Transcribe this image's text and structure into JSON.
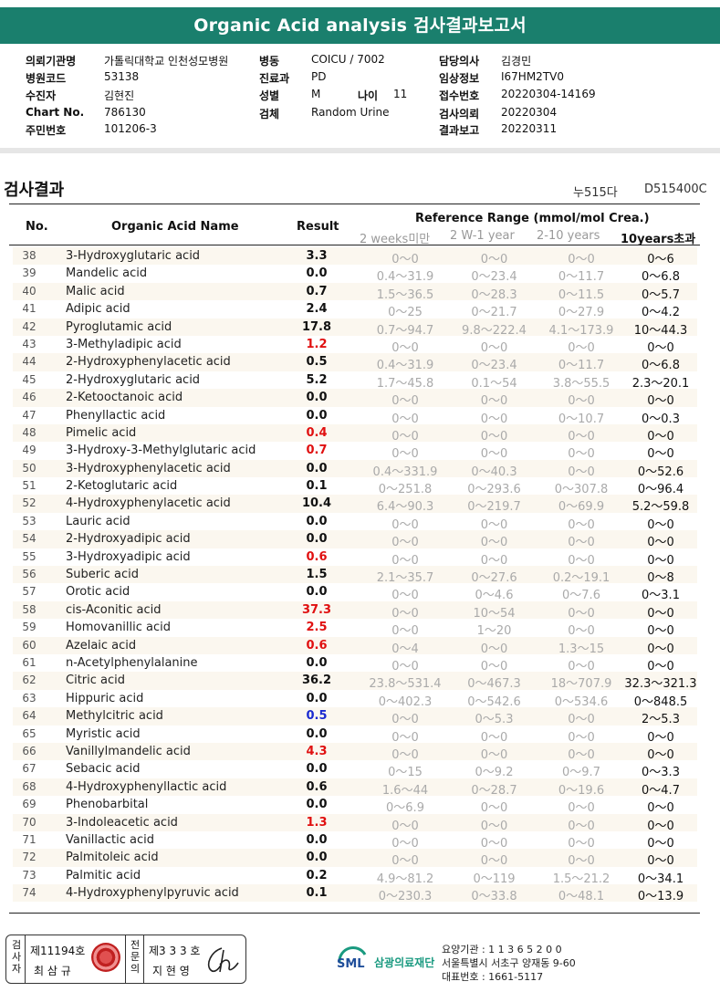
{
  "header": {
    "title": "Organic Acid analysis 검사결과보고서"
  },
  "info": {
    "inst_label": "의뢰기관명",
    "inst_value": "가톨릭대학교 인천성모병원",
    "hcode_label": "병원코드",
    "hcode_value": "53138",
    "patient_label": "수진자",
    "patient_value": "김현진",
    "chart_label": "Chart No.",
    "chart_value": "786130",
    "resident_label": "주민번호",
    "resident_value": "101206-3",
    "ward_label": "병동",
    "ward_value": "COICU / 7002",
    "dept_label": "진료과",
    "dept_value": "PD",
    "sex_label": "성별",
    "sex_value": "M",
    "age_label": "나이",
    "age_value": "11",
    "specimen_label": "검체",
    "specimen_value": "Random Urine",
    "doctor_label": "담당의사",
    "doctor_value": "김경민",
    "clinical_label": "임상정보",
    "clinical_value": "I67HM2TV0",
    "accession_label": "접수번호",
    "accession_value": "20220304-14169",
    "request_label": "검사의뢰",
    "request_value": "20220304",
    "report_label": "결과보고",
    "report_value": "20220311"
  },
  "section": {
    "title": "검사결과",
    "code1": "누515다",
    "code2": "D515400C"
  },
  "table_header": {
    "no": "No.",
    "name": "Organic Acid Name",
    "result": "Result",
    "ref": "Reference Range (mmol/mol Crea.)",
    "r1": "2 weeks미만",
    "r2": "2 W-1 year",
    "r3": "2-10 years",
    "r4": "10years초과"
  },
  "rows": [
    {
      "no": "38",
      "name": "3-Hydroxyglutaric acid",
      "result": "3.3",
      "flag": "black",
      "r1": "0～0",
      "r2": "0～0",
      "r3": "0～0",
      "r4": "0～6"
    },
    {
      "no": "39",
      "name": "Mandelic acid",
      "result": "0.0",
      "flag": "black",
      "r1": "0.4～31.9",
      "r2": "0～23.4",
      "r3": "0～11.7",
      "r4": "0～6.8"
    },
    {
      "no": "40",
      "name": "Malic acid",
      "result": "0.7",
      "flag": "black",
      "r1": "1.5～36.5",
      "r2": "0～28.3",
      "r3": "0～11.5",
      "r4": "0～5.7"
    },
    {
      "no": "41",
      "name": "Adipic acid",
      "result": "2.4",
      "flag": "black",
      "r1": "0～25",
      "r2": "0～21.7",
      "r3": "0～27.9",
      "r4": "0～4.2"
    },
    {
      "no": "42",
      "name": "Pyroglutamic acid",
      "result": "17.8",
      "flag": "black",
      "r1": "0.7～94.7",
      "r2": "9.8～222.4",
      "r3": "4.1～173.9",
      "r4": "10～44.3"
    },
    {
      "no": "43",
      "name": "3-Methyladipic acid",
      "result": "1.2",
      "flag": "red",
      "r1": "0～0",
      "r2": "0～0",
      "r3": "0～0",
      "r4": "0～0"
    },
    {
      "no": "44",
      "name": "2-Hydroxyphenylacetic acid",
      "result": "0.5",
      "flag": "black",
      "r1": "0.4～31.9",
      "r2": "0～23.4",
      "r3": "0～11.7",
      "r4": "0～6.8"
    },
    {
      "no": "45",
      "name": "2-Hydroxyglutaric acid",
      "result": "5.2",
      "flag": "black",
      "r1": "1.7～45.8",
      "r2": "0.1～54",
      "r3": "3.8～55.5",
      "r4": "2.3～20.1"
    },
    {
      "no": "46",
      "name": "2-Ketooctanoic acid",
      "result": "0.0",
      "flag": "black",
      "r1": "0～0",
      "r2": "0～0",
      "r3": "0～0",
      "r4": "0～0"
    },
    {
      "no": "47",
      "name": "Phenyllactic acid",
      "result": "0.0",
      "flag": "black",
      "r1": "0～0",
      "r2": "0～0",
      "r3": "0～10.7",
      "r4": "0～0.3"
    },
    {
      "no": "48",
      "name": "Pimelic acid",
      "result": "0.4",
      "flag": "red",
      "r1": "0～0",
      "r2": "0～0",
      "r3": "0～0",
      "r4": "0～0"
    },
    {
      "no": "49",
      "name": "3-Hydroxy-3-Methylglutaric acid",
      "result": "0.7",
      "flag": "red",
      "r1": "0～0",
      "r2": "0～0",
      "r3": "0～0",
      "r4": "0～0"
    },
    {
      "no": "50",
      "name": "3-Hydroxyphenylacetic acid",
      "result": "0.0",
      "flag": "black",
      "r1": "0.4～331.9",
      "r2": "0～40.3",
      "r3": "0～0",
      "r4": "0～52.6"
    },
    {
      "no": "51",
      "name": "2-Ketoglutaric acid",
      "result": "0.1",
      "flag": "black",
      "r1": "0～251.8",
      "r2": "0～293.6",
      "r3": "0～307.8",
      "r4": "0～96.4"
    },
    {
      "no": "52",
      "name": "4-Hydroxyphenylacetic acid",
      "result": "10.4",
      "flag": "black",
      "r1": "6.4～90.3",
      "r2": "0～219.7",
      "r3": "0～69.9",
      "r4": "5.2～59.8"
    },
    {
      "no": "53",
      "name": "Lauric acid",
      "result": "0.0",
      "flag": "black",
      "r1": "0～0",
      "r2": "0～0",
      "r3": "0～0",
      "r4": "0～0"
    },
    {
      "no": "54",
      "name": "2-Hydroxyadipic acid",
      "result": "0.0",
      "flag": "black",
      "r1": "0～0",
      "r2": "0～0",
      "r3": "0～0",
      "r4": "0～0"
    },
    {
      "no": "55",
      "name": "3-Hydroxyadipic acid",
      "result": "0.6",
      "flag": "red",
      "r1": "0～0",
      "r2": "0～0",
      "r3": "0～0",
      "r4": "0～0"
    },
    {
      "no": "56",
      "name": "Suberic acid",
      "result": "1.5",
      "flag": "black",
      "r1": "2.1～35.7",
      "r2": "0～27.6",
      "r3": "0.2～19.1",
      "r4": "0～8"
    },
    {
      "no": "57",
      "name": "Orotic acid",
      "result": "0.0",
      "flag": "black",
      "r1": "0～0",
      "r2": "0～4.6",
      "r3": "0～7.6",
      "r4": "0～3.1"
    },
    {
      "no": "58",
      "name": "cis-Aconitic acid",
      "result": "37.3",
      "flag": "red",
      "r1": "0～0",
      "r2": "10～54",
      "r3": "0～0",
      "r4": "0～0"
    },
    {
      "no": "59",
      "name": "Homovanillic acid",
      "result": "2.5",
      "flag": "red",
      "r1": "0～0",
      "r2": "1～20",
      "r3": "0～0",
      "r4": "0～0"
    },
    {
      "no": "60",
      "name": "Azelaic acid",
      "result": "0.6",
      "flag": "red",
      "r1": "0～4",
      "r2": "0～0",
      "r3": "1.3～15",
      "r4": "0～0"
    },
    {
      "no": "61",
      "name": "n-Acetylphenylalanine",
      "result": "0.0",
      "flag": "black",
      "r1": "0～0",
      "r2": "0～0",
      "r3": "0～0",
      "r4": "0～0"
    },
    {
      "no": "62",
      "name": "Citric acid",
      "result": "36.2",
      "flag": "black",
      "r1": "23.8～531.4",
      "r2": "0～467.3",
      "r3": "18～707.9",
      "r4": "32.3～321.3"
    },
    {
      "no": "63",
      "name": "Hippuric acid",
      "result": "0.0",
      "flag": "black",
      "r1": "0～402.3",
      "r2": "0～542.6",
      "r3": "0～534.6",
      "r4": "0～848.5"
    },
    {
      "no": "64",
      "name": "Methylcitric acid",
      "result": "0.5",
      "flag": "blue",
      "r1": "0～0",
      "r2": "0～5.3",
      "r3": "0～0",
      "r4": "2～5.3"
    },
    {
      "no": "65",
      "name": "Myristic acid",
      "result": "0.0",
      "flag": "black",
      "r1": "0～0",
      "r2": "0～0",
      "r3": "0～0",
      "r4": "0～0"
    },
    {
      "no": "66",
      "name": "Vanillylmandelic acid",
      "result": "4.3",
      "flag": "red",
      "r1": "0～0",
      "r2": "0～0",
      "r3": "0～0",
      "r4": "0～0"
    },
    {
      "no": "67",
      "name": "Sebacic acid",
      "result": "0.0",
      "flag": "black",
      "r1": "0～15",
      "r2": "0～9.2",
      "r3": "0～9.7",
      "r4": "0～3.3"
    },
    {
      "no": "68",
      "name": "4-Hydroxyphenyllactic acid",
      "result": "0.6",
      "flag": "black",
      "r1": "1.6～44",
      "r2": "0～28.7",
      "r3": "0～19.6",
      "r4": "0～4.7"
    },
    {
      "no": "69",
      "name": "Phenobarbital",
      "result": "0.0",
      "flag": "black",
      "r1": "0～6.9",
      "r2": "0～0",
      "r3": "0～0",
      "r4": "0～0"
    },
    {
      "no": "70",
      "name": "3-Indoleacetic acid",
      "result": "1.3",
      "flag": "red",
      "r1": "0～0",
      "r2": "0～0",
      "r3": "0～0",
      "r4": "0～0"
    },
    {
      "no": "71",
      "name": "Vanillactic acid",
      "result": "0.0",
      "flag": "black",
      "r1": "0～0",
      "r2": "0～0",
      "r3": "0～0",
      "r4": "0～0"
    },
    {
      "no": "72",
      "name": "Palmitoleic acid",
      "result": "0.0",
      "flag": "black",
      "r1": "0～0",
      "r2": "0～0",
      "r3": "0～0",
      "r4": "0～0"
    },
    {
      "no": "73",
      "name": "Palmitic acid",
      "result": "0.2",
      "flag": "black",
      "r1": "4.9～81.2",
      "r2": "0～119",
      "r3": "1.5～21.2",
      "r4": "0～34.1"
    },
    {
      "no": "74",
      "name": "4-Hydroxyphenylpyruvic acid",
      "result": "0.1",
      "flag": "black",
      "r1": "0～230.3",
      "r2": "0～33.8",
      "r3": "0～48.1",
      "r4": "0～13.9"
    }
  ],
  "footer": {
    "examiner_label": "검사자",
    "examiner_license": "제11194호",
    "examiner_name": "최 삼 규",
    "confirm_label": "전문의",
    "confirm_license": "제3 3 3 호",
    "confirm_name": "지 현 영",
    "org_name": "삼광의료재단",
    "logo_text": "SML",
    "care_code": "요양기관 : 1 1 3 6 5 2 0 0",
    "address": "서울특별시 서초구 양재동 9-60",
    "phone": "대표번호 : 1661-5117"
  }
}
